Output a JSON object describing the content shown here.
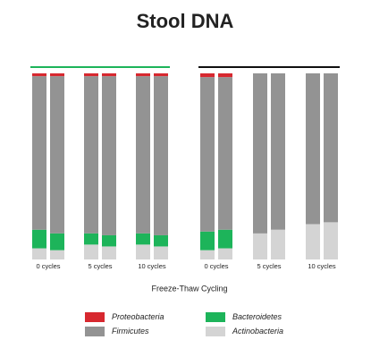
{
  "chart_data": {
    "type": "stacked_bar",
    "title": "Stool DNA",
    "x_label": "Freeze-Thaw Cycling",
    "categories": [
      "0 cycles",
      null,
      "5 cycles",
      null,
      "10 cycles",
      null,
      "0 cycles",
      null,
      "5 cycles",
      null,
      "10 cycles",
      null
    ],
    "ylim": [
      0,
      100
    ],
    "series": [
      {
        "name": "Proteobacteria",
        "color": "#d7282f",
        "values": [
          1.5,
          1.5,
          1.5,
          1.5,
          1.5,
          1.5,
          2,
          2,
          0,
          0,
          0,
          0
        ]
      },
      {
        "name": "Firmicutes",
        "color": "#939393",
        "values": [
          82.5,
          84.5,
          84.5,
          85.5,
          84.5,
          85.5,
          83,
          82,
          86,
          84,
          81,
          80
        ]
      },
      {
        "name": "Bacteroidetes",
        "color": "#1db45a",
        "values": [
          10,
          9,
          6,
          6,
          6,
          6,
          10,
          10,
          0,
          0,
          0,
          0
        ]
      },
      {
        "name": "Actinobacteria",
        "color": "#d4d4d4",
        "values": [
          6,
          5,
          8,
          7,
          8,
          7,
          5,
          6,
          14,
          16,
          19,
          20
        ]
      }
    ]
  }
}
